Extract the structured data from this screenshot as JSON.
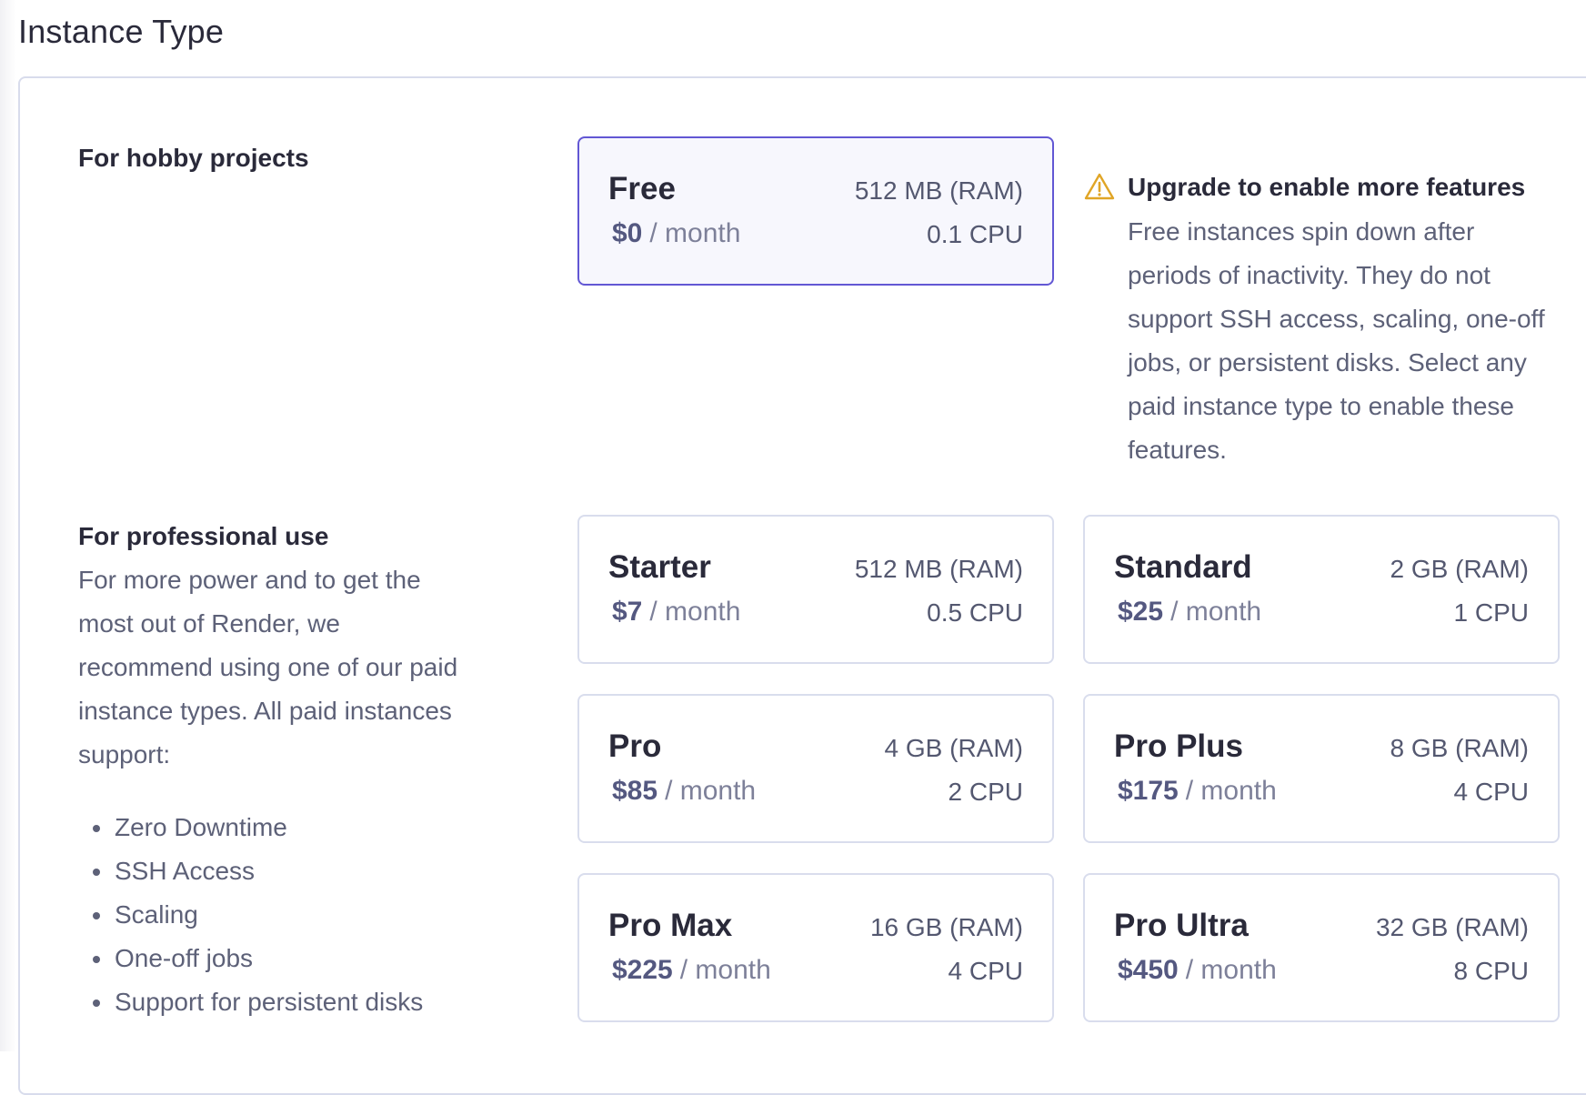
{
  "page": {
    "title": "Instance Type"
  },
  "hobby": {
    "heading": "For hobby projects",
    "cards": [
      {
        "name": "Free",
        "price": "$0",
        "per": "/ month",
        "ram": "512 MB (RAM)",
        "cpu": "0.1 CPU",
        "selected": true
      }
    ],
    "notice": {
      "icon": "warning-icon",
      "title": "Upgrade to enable more features",
      "text": "Free instances spin down after periods of inactivity. They do not support SSH access, scaling, one-off jobs, or persistent disks. Select any paid instance type to enable these features."
    }
  },
  "professional": {
    "heading": "For professional use",
    "description": "For more power and to get the most out of Render, we recommend using one of our paid instance types. All paid instances support:",
    "features": [
      "Zero Downtime",
      "SSH Access",
      "Scaling",
      "One-off jobs",
      "Support for persistent disks"
    ],
    "cards": [
      {
        "name": "Starter",
        "price": "$7",
        "per": "/ month",
        "ram": "512 MB (RAM)",
        "cpu": "0.5 CPU"
      },
      {
        "name": "Standard",
        "price": "$25",
        "per": "/ month",
        "ram": "2 GB (RAM)",
        "cpu": "1 CPU"
      },
      {
        "name": "Pro",
        "price": "$85",
        "per": "/ month",
        "ram": "4 GB (RAM)",
        "cpu": "2 CPU"
      },
      {
        "name": "Pro Plus",
        "price": "$175",
        "per": "/ month",
        "ram": "8 GB (RAM)",
        "cpu": "4 CPU"
      },
      {
        "name": "Pro Max",
        "price": "$225",
        "per": "/ month",
        "ram": "16 GB (RAM)",
        "cpu": "4 CPU"
      },
      {
        "name": "Pro Ultra",
        "price": "$450",
        "per": "/ month",
        "ram": "32 GB (RAM)",
        "cpu": "8 CPU"
      }
    ]
  },
  "colors": {
    "accent": "#6257d4",
    "warning": "#e0a526",
    "card_border": "#d9dded"
  }
}
